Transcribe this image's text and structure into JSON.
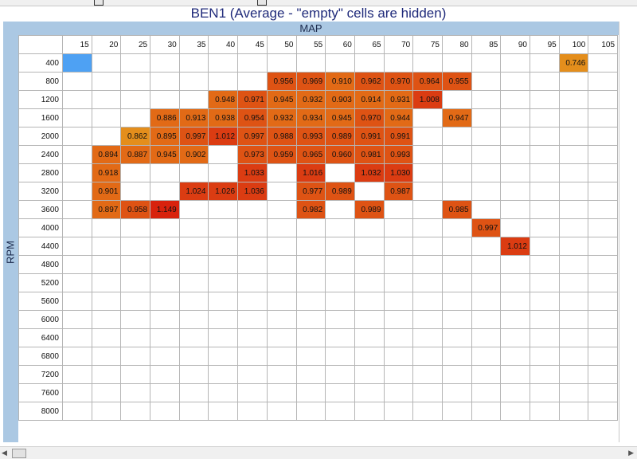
{
  "title": "BEN1 (Average - \"empty\" cells are hidden)",
  "x_axis_label": "MAP",
  "y_axis_label": "RPM",
  "columns": [
    "15",
    "20",
    "25",
    "30",
    "35",
    "40",
    "45",
    "50",
    "55",
    "60",
    "65",
    "70",
    "75",
    "80",
    "85",
    "90",
    "95",
    "100",
    "105"
  ],
  "rows": [
    {
      "rpm": "400",
      "cells": [
        "",
        "",
        "",
        "",
        "",
        "",
        "",
        "",
        "",
        "",
        "",
        "",
        "",
        "",
        "",
        "",
        "",
        "0.746",
        ""
      ]
    },
    {
      "rpm": "800",
      "cells": [
        "",
        "",
        "",
        "",
        "",
        "",
        "",
        "0.956",
        "0.969",
        "0.910",
        "0.962",
        "0.970",
        "0.964",
        "0.955",
        "",
        "",
        "",
        "",
        ""
      ]
    },
    {
      "rpm": "1200",
      "cells": [
        "",
        "",
        "",
        "",
        "",
        "0.948",
        "0.971",
        "0.945",
        "0.932",
        "0.903",
        "0.914",
        "0.931",
        "1.008",
        "",
        "",
        "",
        "",
        "",
        ""
      ]
    },
    {
      "rpm": "1600",
      "cells": [
        "",
        "",
        "",
        "0.886",
        "0.913",
        "0.938",
        "0.954",
        "0.932",
        "0.934",
        "0.945",
        "0.970",
        "0.944",
        "",
        "0.947",
        "",
        "",
        "",
        "",
        ""
      ]
    },
    {
      "rpm": "2000",
      "cells": [
        "",
        "",
        "0.862",
        "0.895",
        "0.997",
        "1.012",
        "0.997",
        "0.988",
        "0.993",
        "0.989",
        "0.991",
        "0.991",
        "",
        "",
        "",
        "",
        "",
        "",
        ""
      ]
    },
    {
      "rpm": "2400",
      "cells": [
        "",
        "0.894",
        "0.887",
        "0.945",
        "0.902",
        "",
        "0.973",
        "0.959",
        "0.965",
        "0.960",
        "0.981",
        "0.993",
        "",
        "",
        "",
        "",
        "",
        "",
        ""
      ]
    },
    {
      "rpm": "2800",
      "cells": [
        "",
        "0.918",
        "",
        "",
        "",
        "",
        "1.033",
        "",
        "1.016",
        "",
        "1.032",
        "1.030",
        "",
        "",
        "",
        "",
        "",
        "",
        ""
      ]
    },
    {
      "rpm": "3200",
      "cells": [
        "",
        "0.901",
        "",
        "",
        "1.024",
        "1.026",
        "1.036",
        "",
        "0.977",
        "0.989",
        "",
        "0.987",
        "",
        "",
        "",
        "",
        "",
        "",
        ""
      ]
    },
    {
      "rpm": "3600",
      "cells": [
        "",
        "0.897",
        "0.958",
        "1.149",
        "",
        "",
        "",
        "",
        "0.982",
        "",
        "0.989",
        "",
        "",
        "0.985",
        "",
        "",
        "",
        "",
        ""
      ]
    },
    {
      "rpm": "4000",
      "cells": [
        "",
        "",
        "",
        "",
        "",
        "",
        "",
        "",
        "",
        "",
        "",
        "",
        "",
        "",
        "0.997",
        "",
        "",
        "",
        ""
      ]
    },
    {
      "rpm": "4400",
      "cells": [
        "",
        "",
        "",
        "",
        "",
        "",
        "",
        "",
        "",
        "",
        "",
        "",
        "",
        "",
        "",
        "1.012",
        "",
        "",
        ""
      ]
    },
    {
      "rpm": "4800",
      "cells": [
        "",
        "",
        "",
        "",
        "",
        "",
        "",
        "",
        "",
        "",
        "",
        "",
        "",
        "",
        "",
        "",
        "",
        "",
        ""
      ]
    },
    {
      "rpm": "5200",
      "cells": [
        "",
        "",
        "",
        "",
        "",
        "",
        "",
        "",
        "",
        "",
        "",
        "",
        "",
        "",
        "",
        "",
        "",
        "",
        ""
      ]
    },
    {
      "rpm": "5600",
      "cells": [
        "",
        "",
        "",
        "",
        "",
        "",
        "",
        "",
        "",
        "",
        "",
        "",
        "",
        "",
        "",
        "",
        "",
        "",
        ""
      ]
    },
    {
      "rpm": "6000",
      "cells": [
        "",
        "",
        "",
        "",
        "",
        "",
        "",
        "",
        "",
        "",
        "",
        "",
        "",
        "",
        "",
        "",
        "",
        "",
        ""
      ]
    },
    {
      "rpm": "6400",
      "cells": [
        "",
        "",
        "",
        "",
        "",
        "",
        "",
        "",
        "",
        "",
        "",
        "",
        "",
        "",
        "",
        "",
        "",
        "",
        ""
      ]
    },
    {
      "rpm": "6800",
      "cells": [
        "",
        "",
        "",
        "",
        "",
        "",
        "",
        "",
        "",
        "",
        "",
        "",
        "",
        "",
        "",
        "",
        "",
        "",
        ""
      ]
    },
    {
      "rpm": "7200",
      "cells": [
        "",
        "",
        "",
        "",
        "",
        "",
        "",
        "",
        "",
        "",
        "",
        "",
        "",
        "",
        "",
        "",
        "",
        "",
        ""
      ]
    },
    {
      "rpm": "7600",
      "cells": [
        "",
        "",
        "",
        "",
        "",
        "",
        "",
        "",
        "",
        "",
        "",
        "",
        "",
        "",
        "",
        "",
        "",
        "",
        ""
      ]
    },
    {
      "rpm": "8000",
      "cells": [
        "",
        "",
        "",
        "",
        "",
        "",
        "",
        "",
        "",
        "",
        "",
        "",
        "",
        "",
        "",
        "",
        "",
        "",
        ""
      ]
    }
  ],
  "selected_cell": {
    "rpm": "400",
    "map": "15"
  },
  "colors": {
    "header_bg": "#abc8e3",
    "title_text": "#1f2a7a",
    "selected": "#4ea1f3",
    "heat_low": "#e48e1c",
    "heat_mid": "#e26a16",
    "heat_high": "#db3c12",
    "heat_max": "#d8220d"
  }
}
